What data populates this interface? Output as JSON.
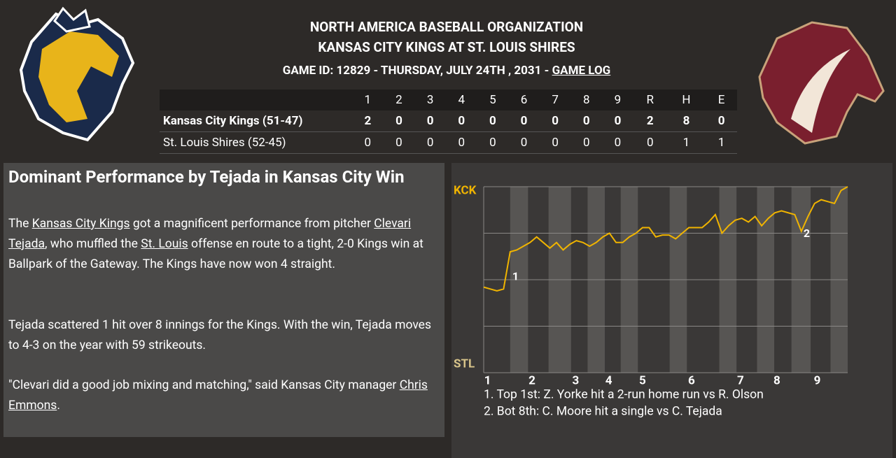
{
  "header": {
    "league": "NORTH AMERICA BASEBALL ORGANIZATION",
    "matchup": "KANSAS CITY KINGS AT ST. LOUIS SHIRES",
    "game_info": "GAME ID: 12829 - THURSDAY, JULY 24TH , 2031 - ",
    "game_log": "GAME LOG"
  },
  "linescore": {
    "columns": [
      "1",
      "2",
      "3",
      "4",
      "5",
      "6",
      "7",
      "8",
      "9",
      "R",
      "H",
      "E"
    ],
    "rows": [
      {
        "team": "Kansas City Kings (51-47)",
        "bold": true,
        "cells": [
          2,
          0,
          0,
          0,
          0,
          0,
          0,
          0,
          0,
          2,
          8,
          0
        ]
      },
      {
        "team": "St. Louis Shires (52-45)",
        "bold": false,
        "cells": [
          0,
          0,
          0,
          0,
          0,
          0,
          0,
          0,
          0,
          0,
          1,
          1
        ]
      }
    ]
  },
  "article": {
    "title": "Dominant Performance by Tejada in Kansas City Win",
    "paragraphs": [
      [
        {
          "text": "The "
        },
        {
          "text": "Kansas City Kings",
          "link": true
        },
        {
          "text": " got a magnificent performance from pitcher "
        },
        {
          "text": "Clevari Tejada",
          "link": true
        },
        {
          "text": ", who muffled the "
        },
        {
          "text": "St. Louis",
          "link": true
        },
        {
          "text": " offense en route to a tight, 2-0 Kings win at Ballpark of the Gateway. The Kings have now won 4 straight."
        }
      ],
      [
        {
          "text": "Tejada scattered 1 hit over 8 innings for the Kings. With the win, Tejada moves to 4-3 on the year with 59 strikeouts."
        }
      ],
      [
        {
          "text": "\"Clevari did a good job mixing and matching,\" said Kansas City manager "
        },
        {
          "text": "Chris Emmons",
          "link": true
        },
        {
          "text": "."
        }
      ]
    ]
  },
  "chart_data": {
    "type": "line",
    "color": "#f0b400",
    "x": [
      0,
      1,
      2,
      3,
      4,
      5,
      6,
      7,
      8,
      9,
      10,
      11,
      12,
      13,
      14,
      15,
      16,
      17,
      18,
      19,
      20,
      21,
      22,
      23,
      24,
      25,
      26,
      27,
      28,
      29,
      30,
      31,
      32,
      33,
      34,
      35,
      36,
      37,
      38,
      39,
      40,
      41,
      42,
      43,
      44,
      45,
      46,
      47,
      48,
      49,
      50,
      51,
      52,
      53,
      54,
      55
    ],
    "values": [
      46,
      45,
      44,
      45,
      65,
      66,
      68,
      70,
      73,
      70,
      67,
      70,
      66,
      69,
      71,
      70,
      68,
      70,
      73,
      75,
      70,
      70,
      73,
      75,
      78,
      78,
      73,
      74,
      74,
      72,
      75,
      78,
      78,
      78,
      81,
      85,
      75,
      79,
      82,
      83,
      81,
      84,
      79,
      83,
      86,
      87,
      86,
      85,
      76,
      84,
      91,
      93,
      92,
      91,
      98,
      100
    ],
    "xlim": [
      0,
      55
    ],
    "ylim": [
      0,
      100
    ],
    "yticks": [
      {
        "value": 100,
        "label": "KCK"
      },
      {
        "value": 0,
        "label": "STL"
      }
    ],
    "grid_lines": [
      25,
      50,
      75
    ],
    "xticks": [
      {
        "value": 0.6,
        "label": "1"
      },
      {
        "value": 7.3,
        "label": "2"
      },
      {
        "value": 13.9,
        "label": "3"
      },
      {
        "value": 18.9,
        "label": "4"
      },
      {
        "value": 24,
        "label": "5"
      },
      {
        "value": 31.4,
        "label": "6"
      },
      {
        "value": 38.8,
        "label": "7"
      },
      {
        "value": 44.3,
        "label": "8"
      },
      {
        "value": 50.4,
        "label": "9"
      }
    ],
    "shaded_bands": [
      [
        4.0,
        6.7
      ],
      [
        9.8,
        13.2
      ],
      [
        15.7,
        18.3
      ],
      [
        20.7,
        23.3
      ],
      [
        28.1,
        30.7
      ],
      [
        35.6,
        38.2
      ],
      [
        41.3,
        43.9
      ],
      [
        46.5,
        49.4
      ],
      [
        52.4,
        55
      ]
    ],
    "annotations": [
      {
        "marker": "1",
        "x": 4,
        "note": "1. Top 1st: Z. Yorke hit a 2-run home run vs R. Olson"
      },
      {
        "marker": "2",
        "x": 48,
        "note": "2. Bot 8th: C. Moore hit a single vs C. Tejada"
      }
    ]
  }
}
